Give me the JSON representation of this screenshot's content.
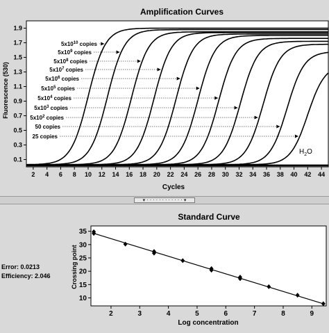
{
  "top_chart": {
    "title": "Amplification Curves",
    "xlabel": "Cycles",
    "ylabel": "Fluorescence (530)",
    "x_ticks": [
      2,
      4,
      6,
      8,
      10,
      12,
      14,
      16,
      18,
      20,
      22,
      24,
      26,
      28,
      30,
      32,
      34,
      36,
      38,
      40,
      42,
      44
    ],
    "y_ticks": [
      0.1,
      0.3,
      0.5,
      0.7,
      0.9,
      1.1,
      1.3,
      1.5,
      1.7,
      1.9
    ],
    "xlim": [
      1,
      45
    ],
    "ylim": [
      0,
      2.0
    ],
    "legend_labels": [
      {
        "base": "5x10",
        "exp": "10",
        "suffix": " copies"
      },
      {
        "base": "5x10",
        "exp": "9",
        "suffix": " copies"
      },
      {
        "base": "5x10",
        "exp": "8",
        "suffix": " copies"
      },
      {
        "base": "5x10",
        "exp": "7",
        "suffix": " copies"
      },
      {
        "base": "5x10",
        "exp": "6",
        "suffix": " copies"
      },
      {
        "base": "5x10",
        "exp": "5",
        "suffix": " copies"
      },
      {
        "base": "5x10",
        "exp": "4",
        "suffix": " copies"
      },
      {
        "base": "5x10",
        "exp": "3",
        "suffix": " copies"
      },
      {
        "base": "5x10",
        "exp": "2",
        "suffix": " copies"
      },
      {
        "base": "50",
        "exp": "",
        "suffix": " copies"
      },
      {
        "base": "25",
        "exp": "",
        "suffix": " copies"
      }
    ],
    "water_label": {
      "base": "H",
      "sub": "2",
      "suffix": "O"
    }
  },
  "splitter_handle": "▾ · · · · · · · · · · · · ▾",
  "bottom_chart": {
    "title": "Standard Curve",
    "xlabel": "Log concentration",
    "ylabel": "Crossing point",
    "x_ticks": [
      2,
      3,
      4,
      5,
      6,
      7,
      8,
      9
    ],
    "y_ticks": [
      10,
      15,
      20,
      25,
      30,
      35
    ],
    "xlim": [
      1.3,
      9.5
    ],
    "ylim": [
      7,
      37
    ]
  },
  "stats": {
    "error": "Error: 0.0213",
    "efficiency": "Efficiency: 2.046"
  },
  "chart_data": [
    {
      "type": "line",
      "title": "Amplification Curves",
      "xlabel": "Cycles",
      "ylabel": "Fluorescence (530)",
      "xlim": [
        1,
        45
      ],
      "ylim": [
        0,
        2.0
      ],
      "series": [
        {
          "name": "5x10^10 copies",
          "midpoint": 10.0,
          "plateau": 1.9
        },
        {
          "name": "5x10^9 copies",
          "midpoint": 12.8,
          "plateau": 1.88
        },
        {
          "name": "5x10^8 copies",
          "midpoint": 16.3,
          "plateau": 1.85
        },
        {
          "name": "5x10^7 copies",
          "midpoint": 19.6,
          "plateau": 1.84
        },
        {
          "name": "5x10^6 copies",
          "midpoint": 22.8,
          "plateau": 1.82
        },
        {
          "name": "5x10^5 copies",
          "midpoint": 26.0,
          "plateau": 1.8
        },
        {
          "name": "5x10^4 copies",
          "midpoint": 29.0,
          "plateau": 1.76
        },
        {
          "name": "5x10^3 copies",
          "midpoint": 32.2,
          "plateau": 1.72
        },
        {
          "name": "5x10^2 copies",
          "midpoint": 35.5,
          "plateau": 1.68
        },
        {
          "name": "50 copies",
          "midpoint": 39.0,
          "plateau": 1.58
        },
        {
          "name": "25 copies",
          "midpoint": 42.0,
          "plateau": 1.4
        },
        {
          "name": "H2O",
          "midpoint": null,
          "plateau": 0.02
        }
      ],
      "grid": false
    },
    {
      "type": "scatter",
      "title": "Standard Curve",
      "xlabel": "Log concentration",
      "ylabel": "Crossing point",
      "xlim": [
        1.3,
        9.5
      ],
      "ylim": [
        7,
        37
      ],
      "points": [
        {
          "x": 1.4,
          "y": 34.8
        },
        {
          "x": 1.4,
          "y": 34.2
        },
        {
          "x": 2.5,
          "y": 30.2
        },
        {
          "x": 3.5,
          "y": 27.4
        },
        {
          "x": 3.5,
          "y": 26.8
        },
        {
          "x": 4.5,
          "y": 24.0
        },
        {
          "x": 5.5,
          "y": 21.0
        },
        {
          "x": 5.5,
          "y": 20.4
        },
        {
          "x": 6.5,
          "y": 17.8
        },
        {
          "x": 6.5,
          "y": 17.2
        },
        {
          "x": 7.5,
          "y": 14.2
        },
        {
          "x": 8.5,
          "y": 11.0
        },
        {
          "x": 9.4,
          "y": 7.8
        }
      ],
      "fit_line": {
        "x": [
          1.4,
          9.4
        ],
        "y": [
          34.2,
          7.8
        ]
      },
      "grid": false
    }
  ]
}
